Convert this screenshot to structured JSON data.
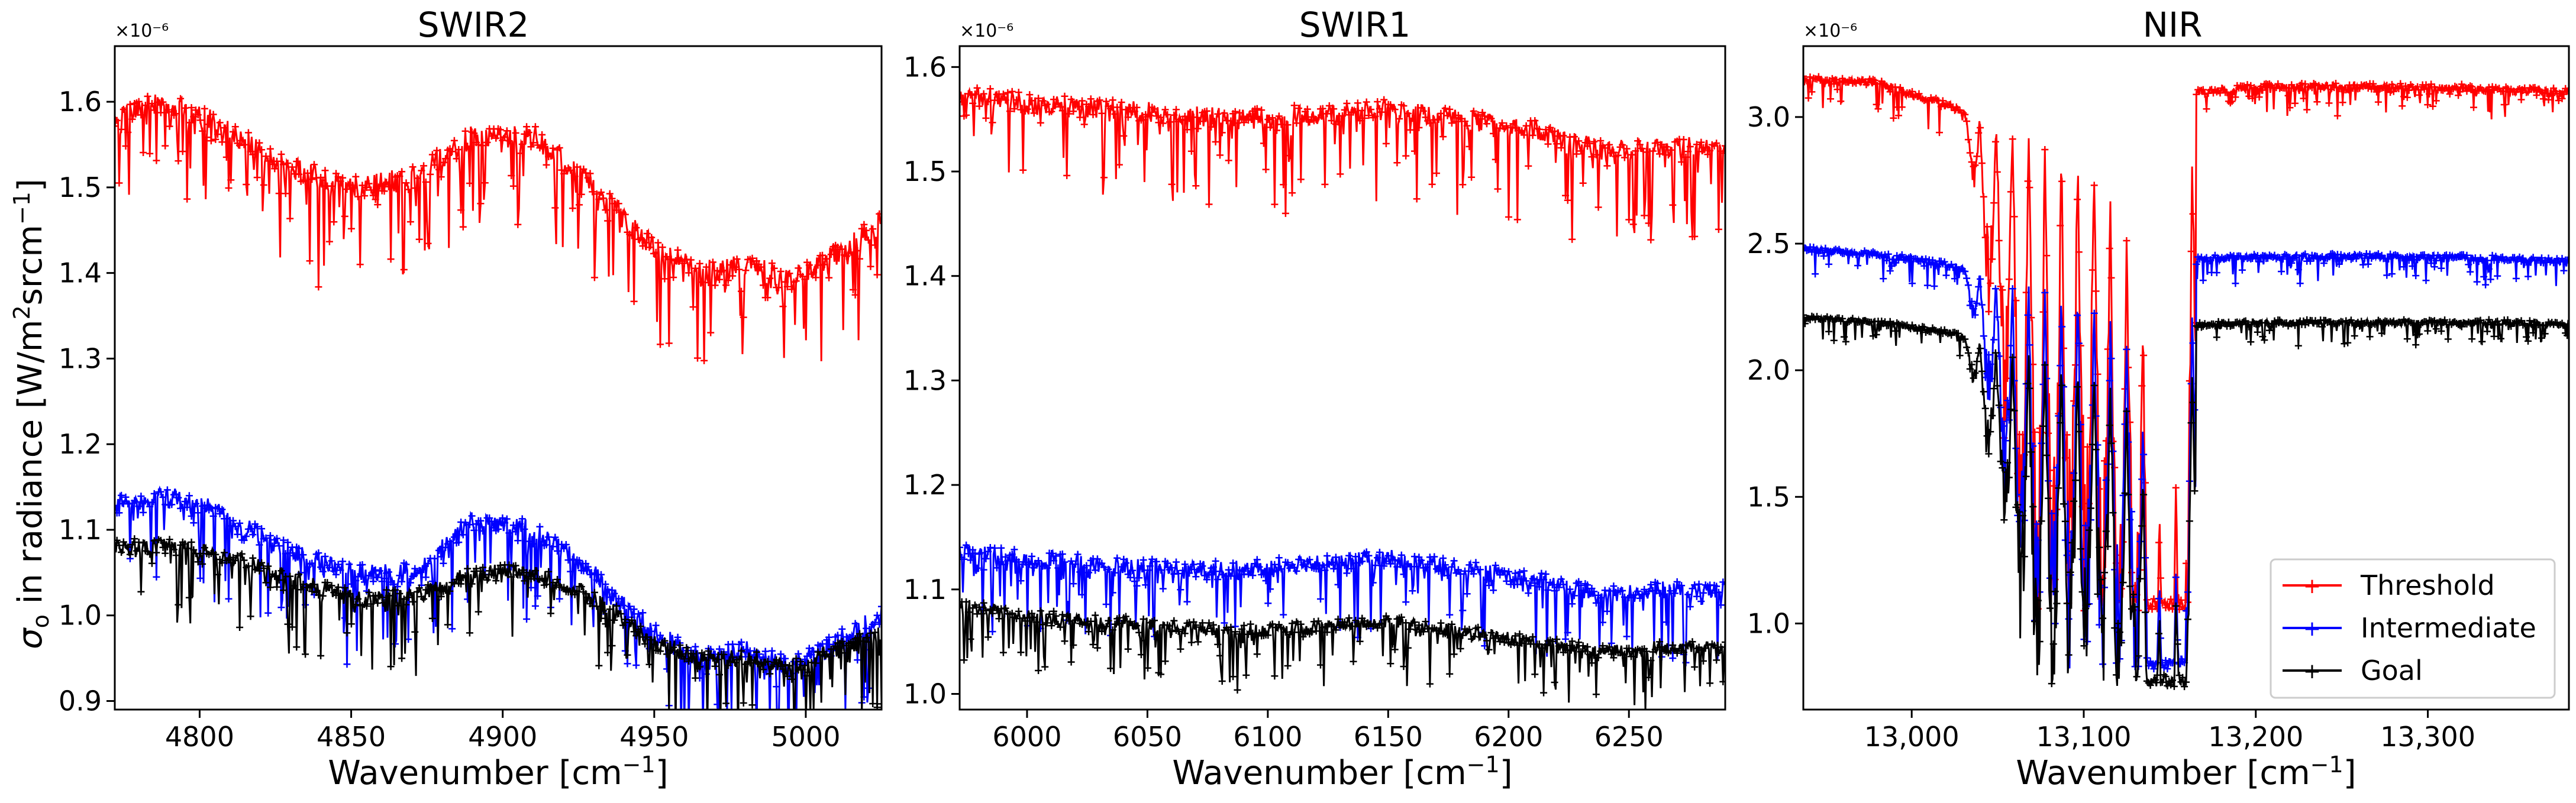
{
  "figure": {
    "ylabel_main": "σ",
    "ylabel_sub": "o",
    "ylabel_text": " in radiance [W/m",
    "ylabel_sup": "2",
    "ylabel_mid": "srcm",
    "ylabel_sup2": "−1",
    "ylabel_end": "]",
    "multiplier": "×10⁻⁶"
  },
  "legend": {
    "location": "lower-right",
    "entries": [
      {
        "label": "Threshold",
        "color": "#ff0000"
      },
      {
        "label": "Intermediate",
        "color": "#0000ff"
      },
      {
        "label": "Goal",
        "color": "#000000"
      }
    ]
  },
  "chart_data": [
    {
      "type": "line",
      "title": "SWIR2",
      "xlabel": "Wavenumber [cm",
      "xlabel_sup": "−1",
      "xlabel_end": "]",
      "ylabel": "σo in radiance [W/m2srcm−1]",
      "xlim": [
        4772,
        5025
      ],
      "ylim": [
        0.89,
        1.665
      ],
      "x_ticks": [
        4800,
        4850,
        4900,
        4950,
        5000
      ],
      "x_tick_labels": [
        "4800",
        "4850",
        "4900",
        "4950",
        "5000"
      ],
      "y_ticks": [
        0.9,
        1.0,
        1.1,
        1.2,
        1.3,
        1.4,
        1.5,
        1.6
      ],
      "y_tick_labels": [
        "0.9",
        "1.0",
        "1.1",
        "1.2",
        "1.3",
        "1.4",
        "1.5",
        "1.6"
      ],
      "multiplier": "×10⁻⁶",
      "series": [
        {
          "name": "Threshold",
          "color": "#ff0000",
          "noise": 0.03,
          "x": [
            4772,
            4790,
            4808,
            4825,
            4850,
            4870,
            4890,
            4910,
            4930,
            4950,
            4965,
            4980,
            4995,
            5010,
            5025
          ],
          "y": [
            1.59,
            1.6,
            1.57,
            1.53,
            1.5,
            1.51,
            1.56,
            1.56,
            1.5,
            1.43,
            1.4,
            1.41,
            1.39,
            1.42,
            1.46
          ]
        },
        {
          "name": "Intermediate",
          "color": "#0000ff",
          "noise": 0.025,
          "x": [
            4772,
            4790,
            4808,
            4825,
            4850,
            4870,
            4890,
            4910,
            4930,
            4950,
            4965,
            4980,
            4995,
            5010,
            5025
          ],
          "y": [
            1.13,
            1.14,
            1.12,
            1.08,
            1.05,
            1.05,
            1.11,
            1.1,
            1.05,
            0.98,
            0.95,
            0.96,
            0.94,
            0.97,
            1.0
          ]
        },
        {
          "name": "Goal",
          "color": "#000000",
          "noise": 0.022,
          "x": [
            4772,
            4790,
            4808,
            4825,
            4850,
            4870,
            4890,
            4910,
            4930,
            4950,
            4965,
            4980,
            4995,
            5010,
            5025
          ],
          "y": [
            1.08,
            1.08,
            1.07,
            1.05,
            1.02,
            1.02,
            1.05,
            1.05,
            1.02,
            0.97,
            0.95,
            0.95,
            0.94,
            0.96,
            0.98
          ]
        }
      ]
    },
    {
      "type": "line",
      "title": "SWIR1",
      "xlabel": "Wavenumber [cm",
      "xlabel_sup": "−1",
      "xlabel_end": "]",
      "ylabel": "",
      "xlim": [
        5972,
        6290
      ],
      "ylim": [
        0.985,
        1.62
      ],
      "x_ticks": [
        6000,
        6050,
        6100,
        6150,
        6200,
        6250
      ],
      "x_tick_labels": [
        "6000",
        "6050",
        "6100",
        "6150",
        "6200",
        "6250"
      ],
      "y_ticks": [
        1.0,
        1.1,
        1.2,
        1.3,
        1.4,
        1.5,
        1.6
      ],
      "y_tick_labels": [
        "1.0",
        "1.1",
        "1.2",
        "1.3",
        "1.4",
        "1.5",
        "1.6"
      ],
      "multiplier": "×10⁻⁶",
      "series": [
        {
          "name": "Threshold",
          "color": "#ff0000",
          "noise": 0.022,
          "x": [
            5972,
            6000,
            6030,
            6060,
            6090,
            6120,
            6150,
            6180,
            6210,
            6240,
            6265,
            6290
          ],
          "y": [
            1.575,
            1.565,
            1.56,
            1.555,
            1.55,
            1.555,
            1.56,
            1.55,
            1.54,
            1.52,
            1.525,
            1.52
          ]
        },
        {
          "name": "Intermediate",
          "color": "#0000ff",
          "noise": 0.018,
          "x": [
            5972,
            6000,
            6030,
            6060,
            6090,
            6120,
            6150,
            6180,
            6210,
            6240,
            6265,
            6290
          ],
          "y": [
            1.135,
            1.13,
            1.125,
            1.12,
            1.12,
            1.125,
            1.13,
            1.12,
            1.11,
            1.095,
            1.1,
            1.1
          ]
        },
        {
          "name": "Goal",
          "color": "#000000",
          "noise": 0.014,
          "x": [
            5972,
            6000,
            6030,
            6060,
            6090,
            6120,
            6150,
            6180,
            6210,
            6240,
            6265,
            6290
          ],
          "y": [
            1.085,
            1.075,
            1.07,
            1.065,
            1.06,
            1.065,
            1.07,
            1.06,
            1.05,
            1.04,
            1.045,
            1.045
          ]
        }
      ]
    },
    {
      "type": "line",
      "title": "NIR",
      "xlabel": "Wavenumber [cm",
      "xlabel_sup": "−1",
      "xlabel_end": "]",
      "ylabel": "",
      "xlim": [
        12937,
        13382
      ],
      "ylim": [
        0.66,
        3.28
      ],
      "x_ticks": [
        13000,
        13100,
        13200,
        13300
      ],
      "x_tick_labels": [
        "13,000",
        "13,100",
        "13,200",
        "13,300"
      ],
      "y_ticks": [
        1.0,
        1.5,
        2.0,
        2.5,
        3.0
      ],
      "y_tick_labels": [
        "1.0",
        "1.5",
        "2.0",
        "2.5",
        "3.0"
      ],
      "multiplier": "×10⁻⁶",
      "series": [
        {
          "name": "Threshold",
          "color": "#ff0000",
          "noise": 0.03,
          "band_depth": 2.1,
          "band_level": 1.05,
          "x": [
            12937,
            12980,
            13020,
            13060,
            13100,
            13130,
            13150,
            13165,
            13200,
            13250,
            13300,
            13350,
            13382
          ],
          "y": [
            3.15,
            3.14,
            3.05,
            2.95,
            2.85,
            2.5,
            1.1,
            3.1,
            3.12,
            3.12,
            3.12,
            3.11,
            3.1
          ]
        },
        {
          "name": "Intermediate",
          "color": "#0000ff",
          "noise": 0.025,
          "band_depth": 1.5,
          "band_level": 0.82,
          "x": [
            12937,
            12980,
            13020,
            13060,
            13100,
            13130,
            13150,
            13165,
            13200,
            13250,
            13300,
            13350,
            13382
          ],
          "y": [
            2.48,
            2.46,
            2.42,
            2.35,
            2.3,
            2.1,
            0.82,
            2.44,
            2.45,
            2.45,
            2.45,
            2.44,
            2.43
          ]
        },
        {
          "name": "Goal",
          "color": "#000000",
          "noise": 0.022,
          "band_depth": 1.4,
          "band_level": 0.75,
          "x": [
            12937,
            12980,
            13020,
            13060,
            13100,
            13130,
            13150,
            13165,
            13200,
            13250,
            13300,
            13350,
            13382
          ],
          "y": [
            2.21,
            2.19,
            2.15,
            2.08,
            2.02,
            1.85,
            0.75,
            2.18,
            2.19,
            2.19,
            2.19,
            2.19,
            2.18
          ]
        }
      ]
    }
  ]
}
